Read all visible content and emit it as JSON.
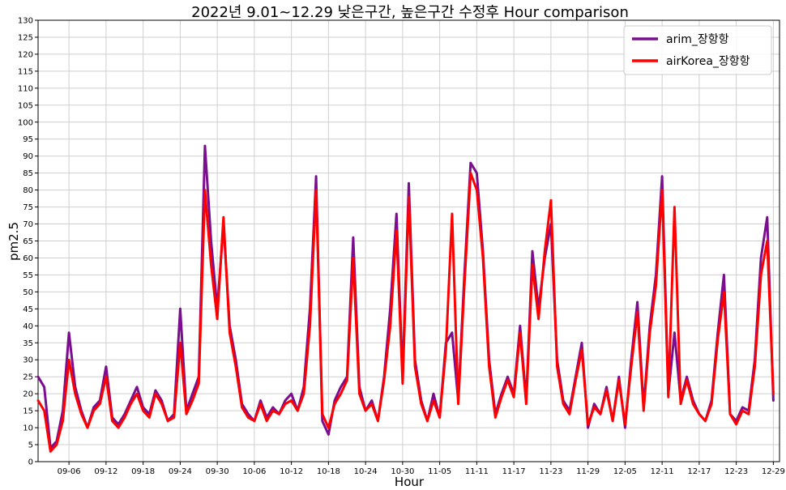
{
  "chart_data": {
    "type": "line",
    "title": "2022년 9.01~12.29 낮은구간, 높은구간 수정후 Hour comparison",
    "xlabel": "Hour",
    "ylabel": "pm2.5",
    "ylim": [
      0,
      130
    ],
    "yticks": [
      0,
      5,
      10,
      15,
      20,
      25,
      30,
      35,
      40,
      45,
      50,
      55,
      60,
      65,
      70,
      75,
      80,
      85,
      90,
      95,
      100,
      105,
      110,
      115,
      120,
      125,
      130
    ],
    "xlim": [
      "2022-09-01",
      "2022-12-30"
    ],
    "xticks": [
      "09-06",
      "09-12",
      "09-18",
      "09-24",
      "09-30",
      "10-06",
      "10-12",
      "10-18",
      "10-24",
      "10-30",
      "11-05",
      "11-11",
      "11-17",
      "11-23",
      "11-29",
      "12-05",
      "12-11",
      "12-17",
      "12-23",
      "12-29"
    ],
    "xtick_dates": [
      "2022-09-06",
      "2022-09-12",
      "2022-09-18",
      "2022-09-24",
      "2022-09-30",
      "2022-10-06",
      "2022-10-12",
      "2022-10-18",
      "2022-10-24",
      "2022-10-30",
      "2022-11-05",
      "2022-11-11",
      "2022-11-17",
      "2022-11-23",
      "2022-11-29",
      "2022-12-05",
      "2022-12-11",
      "2022-12-17",
      "2022-12-23",
      "2022-12-29"
    ],
    "grid": true,
    "legend_position": "top-right",
    "series": [
      {
        "name": "arim_장항항",
        "color": "#7b0e8f",
        "points": [
          [
            "2022-09-01",
            25
          ],
          [
            "2022-09-02",
            22
          ],
          [
            "2022-09-03",
            4
          ],
          [
            "2022-09-04",
            6
          ],
          [
            "2022-09-05",
            15
          ],
          [
            "2022-09-06",
            38
          ],
          [
            "2022-09-07",
            22
          ],
          [
            "2022-09-08",
            15
          ],
          [
            "2022-09-09",
            10
          ],
          [
            "2022-09-10",
            16
          ],
          [
            "2022-09-11",
            18
          ],
          [
            "2022-09-12",
            28
          ],
          [
            "2022-09-13",
            13
          ],
          [
            "2022-09-14",
            11
          ],
          [
            "2022-09-15",
            14
          ],
          [
            "2022-09-16",
            18
          ],
          [
            "2022-09-17",
            22
          ],
          [
            "2022-09-18",
            16
          ],
          [
            "2022-09-19",
            14
          ],
          [
            "2022-09-20",
            21
          ],
          [
            "2022-09-21",
            18
          ],
          [
            "2022-09-22",
            12
          ],
          [
            "2022-09-23",
            14
          ],
          [
            "2022-09-24",
            45
          ],
          [
            "2022-09-25",
            15
          ],
          [
            "2022-09-26",
            20
          ],
          [
            "2022-09-27",
            25
          ],
          [
            "2022-09-28",
            93
          ],
          [
            "2022-09-29",
            65
          ],
          [
            "2022-09-30",
            45
          ],
          [
            "2022-10-01",
            70
          ],
          [
            "2022-10-02",
            40
          ],
          [
            "2022-10-03",
            30
          ],
          [
            "2022-10-04",
            17
          ],
          [
            "2022-10-05",
            14
          ],
          [
            "2022-10-06",
            12
          ],
          [
            "2022-10-07",
            18
          ],
          [
            "2022-10-08",
            13
          ],
          [
            "2022-10-09",
            16
          ],
          [
            "2022-10-10",
            14
          ],
          [
            "2022-10-11",
            18
          ],
          [
            "2022-10-12",
            20
          ],
          [
            "2022-10-13",
            15
          ],
          [
            "2022-10-14",
            22
          ],
          [
            "2022-10-15",
            45
          ],
          [
            "2022-10-16",
            84
          ],
          [
            "2022-10-17",
            12
          ],
          [
            "2022-10-18",
            8
          ],
          [
            "2022-10-19",
            18
          ],
          [
            "2022-10-20",
            22
          ],
          [
            "2022-10-21",
            25
          ],
          [
            "2022-10-22",
            66
          ],
          [
            "2022-10-23",
            22
          ],
          [
            "2022-10-24",
            15
          ],
          [
            "2022-10-25",
            18
          ],
          [
            "2022-10-26",
            12
          ],
          [
            "2022-10-27",
            25
          ],
          [
            "2022-10-28",
            45
          ],
          [
            "2022-10-29",
            73
          ],
          [
            "2022-10-30",
            25
          ],
          [
            "2022-10-31",
            82
          ],
          [
            "2022-11-01",
            30
          ],
          [
            "2022-11-02",
            18
          ],
          [
            "2022-11-03",
            12
          ],
          [
            "2022-11-04",
            20
          ],
          [
            "2022-11-05",
            13
          ],
          [
            "2022-11-06",
            35
          ],
          [
            "2022-11-07",
            38
          ],
          [
            "2022-11-08",
            18
          ],
          [
            "2022-11-09",
            55
          ],
          [
            "2022-11-10",
            88
          ],
          [
            "2022-11-11",
            85
          ],
          [
            "2022-11-12",
            62
          ],
          [
            "2022-11-13",
            30
          ],
          [
            "2022-11-14",
            14
          ],
          [
            "2022-11-15",
            20
          ],
          [
            "2022-11-16",
            25
          ],
          [
            "2022-11-17",
            20
          ],
          [
            "2022-11-18",
            40
          ],
          [
            "2022-11-19",
            18
          ],
          [
            "2022-11-20",
            62
          ],
          [
            "2022-11-21",
            45
          ],
          [
            "2022-11-22",
            60
          ],
          [
            "2022-11-23",
            70
          ],
          [
            "2022-11-24",
            30
          ],
          [
            "2022-11-25",
            18
          ],
          [
            "2022-11-26",
            15
          ],
          [
            "2022-11-27",
            25
          ],
          [
            "2022-11-28",
            35
          ],
          [
            "2022-11-29",
            10
          ],
          [
            "2022-11-30",
            17
          ],
          [
            "2022-12-01",
            14
          ],
          [
            "2022-12-02",
            22
          ],
          [
            "2022-12-03",
            12
          ],
          [
            "2022-12-04",
            25
          ],
          [
            "2022-12-05",
            10
          ],
          [
            "2022-12-06",
            30
          ],
          [
            "2022-12-07",
            47
          ],
          [
            "2022-12-08",
            16
          ],
          [
            "2022-12-09",
            40
          ],
          [
            "2022-12-10",
            55
          ],
          [
            "2022-12-11",
            84
          ],
          [
            "2022-12-12",
            20
          ],
          [
            "2022-12-13",
            38
          ],
          [
            "2022-12-14",
            18
          ],
          [
            "2022-12-15",
            25
          ],
          [
            "2022-12-16",
            18
          ],
          [
            "2022-12-17",
            14
          ],
          [
            "2022-12-18",
            12
          ],
          [
            "2022-12-19",
            18
          ],
          [
            "2022-12-20",
            38
          ],
          [
            "2022-12-21",
            55
          ],
          [
            "2022-12-22",
            14
          ],
          [
            "2022-12-23",
            12
          ],
          [
            "2022-12-24",
            16
          ],
          [
            "2022-12-25",
            15
          ],
          [
            "2022-12-26",
            30
          ],
          [
            "2022-12-27",
            60
          ],
          [
            "2022-12-28",
            72
          ],
          [
            "2022-12-29",
            18
          ]
        ]
      },
      {
        "name": "airKorea_장항항",
        "color": "#ff0000",
        "points": [
          [
            "2022-09-01",
            18
          ],
          [
            "2022-09-02",
            15
          ],
          [
            "2022-09-03",
            3
          ],
          [
            "2022-09-04",
            5
          ],
          [
            "2022-09-05",
            12
          ],
          [
            "2022-09-06",
            30
          ],
          [
            "2022-09-07",
            20
          ],
          [
            "2022-09-08",
            14
          ],
          [
            "2022-09-09",
            10
          ],
          [
            "2022-09-10",
            15
          ],
          [
            "2022-09-11",
            17
          ],
          [
            "2022-09-12",
            25
          ],
          [
            "2022-09-13",
            12
          ],
          [
            "2022-09-14",
            10
          ],
          [
            "2022-09-15",
            13
          ],
          [
            "2022-09-16",
            17
          ],
          [
            "2022-09-17",
            20
          ],
          [
            "2022-09-18",
            15
          ],
          [
            "2022-09-19",
            13
          ],
          [
            "2022-09-20",
            20
          ],
          [
            "2022-09-21",
            17
          ],
          [
            "2022-09-22",
            12
          ],
          [
            "2022-09-23",
            13
          ],
          [
            "2022-09-24",
            35
          ],
          [
            "2022-09-25",
            14
          ],
          [
            "2022-09-26",
            18
          ],
          [
            "2022-09-27",
            23
          ],
          [
            "2022-09-28",
            80
          ],
          [
            "2022-09-29",
            58
          ],
          [
            "2022-09-30",
            42
          ],
          [
            "2022-10-01",
            72
          ],
          [
            "2022-10-02",
            38
          ],
          [
            "2022-10-03",
            28
          ],
          [
            "2022-10-04",
            16
          ],
          [
            "2022-10-05",
            13
          ],
          [
            "2022-10-06",
            12
          ],
          [
            "2022-10-07",
            17
          ],
          [
            "2022-10-08",
            12
          ],
          [
            "2022-10-09",
            15
          ],
          [
            "2022-10-10",
            14
          ],
          [
            "2022-10-11",
            17
          ],
          [
            "2022-10-12",
            18
          ],
          [
            "2022-10-13",
            15
          ],
          [
            "2022-10-14",
            20
          ],
          [
            "2022-10-15",
            40
          ],
          [
            "2022-10-16",
            80
          ],
          [
            "2022-10-17",
            14
          ],
          [
            "2022-10-18",
            10
          ],
          [
            "2022-10-19",
            17
          ],
          [
            "2022-10-20",
            20
          ],
          [
            "2022-10-21",
            24
          ],
          [
            "2022-10-22",
            60
          ],
          [
            "2022-10-23",
            20
          ],
          [
            "2022-10-24",
            15
          ],
          [
            "2022-10-25",
            17
          ],
          [
            "2022-10-26",
            12
          ],
          [
            "2022-10-27",
            24
          ],
          [
            "2022-10-28",
            40
          ],
          [
            "2022-10-29",
            68
          ],
          [
            "2022-10-30",
            23
          ],
          [
            "2022-10-31",
            78
          ],
          [
            "2022-11-01",
            28
          ],
          [
            "2022-11-02",
            17
          ],
          [
            "2022-11-03",
            12
          ],
          [
            "2022-11-04",
            18
          ],
          [
            "2022-11-05",
            13
          ],
          [
            "2022-11-06",
            33
          ],
          [
            "2022-11-07",
            73
          ],
          [
            "2022-11-08",
            17
          ],
          [
            "2022-11-09",
            52
          ],
          [
            "2022-11-10",
            85
          ],
          [
            "2022-11-11",
            80
          ],
          [
            "2022-11-12",
            60
          ],
          [
            "2022-11-13",
            28
          ],
          [
            "2022-11-14",
            13
          ],
          [
            "2022-11-15",
            19
          ],
          [
            "2022-11-16",
            24
          ],
          [
            "2022-11-17",
            19
          ],
          [
            "2022-11-18",
            38
          ],
          [
            "2022-11-19",
            17
          ],
          [
            "2022-11-20",
            58
          ],
          [
            "2022-11-21",
            42
          ],
          [
            "2022-11-22",
            62
          ],
          [
            "2022-11-23",
            77
          ],
          [
            "2022-11-24",
            28
          ],
          [
            "2022-11-25",
            17
          ],
          [
            "2022-11-26",
            14
          ],
          [
            "2022-11-27",
            24
          ],
          [
            "2022-11-28",
            33
          ],
          [
            "2022-11-29",
            11
          ],
          [
            "2022-11-30",
            16
          ],
          [
            "2022-12-01",
            14
          ],
          [
            "2022-12-02",
            21
          ],
          [
            "2022-12-03",
            12
          ],
          [
            "2022-12-04",
            24
          ],
          [
            "2022-12-05",
            11
          ],
          [
            "2022-12-06",
            28
          ],
          [
            "2022-12-07",
            44
          ],
          [
            "2022-12-08",
            15
          ],
          [
            "2022-12-09",
            38
          ],
          [
            "2022-12-10",
            52
          ],
          [
            "2022-12-11",
            80
          ],
          [
            "2022-12-12",
            19
          ],
          [
            "2022-12-13",
            75
          ],
          [
            "2022-12-14",
            17
          ],
          [
            "2022-12-15",
            24
          ],
          [
            "2022-12-16",
            17
          ],
          [
            "2022-12-17",
            14
          ],
          [
            "2022-12-18",
            12
          ],
          [
            "2022-12-19",
            17
          ],
          [
            "2022-12-20",
            36
          ],
          [
            "2022-12-21",
            50
          ],
          [
            "2022-12-22",
            14
          ],
          [
            "2022-12-23",
            11
          ],
          [
            "2022-12-24",
            15
          ],
          [
            "2022-12-25",
            14
          ],
          [
            "2022-12-26",
            28
          ],
          [
            "2022-12-27",
            55
          ],
          [
            "2022-12-28",
            65
          ],
          [
            "2022-12-29",
            20
          ]
        ]
      }
    ]
  }
}
